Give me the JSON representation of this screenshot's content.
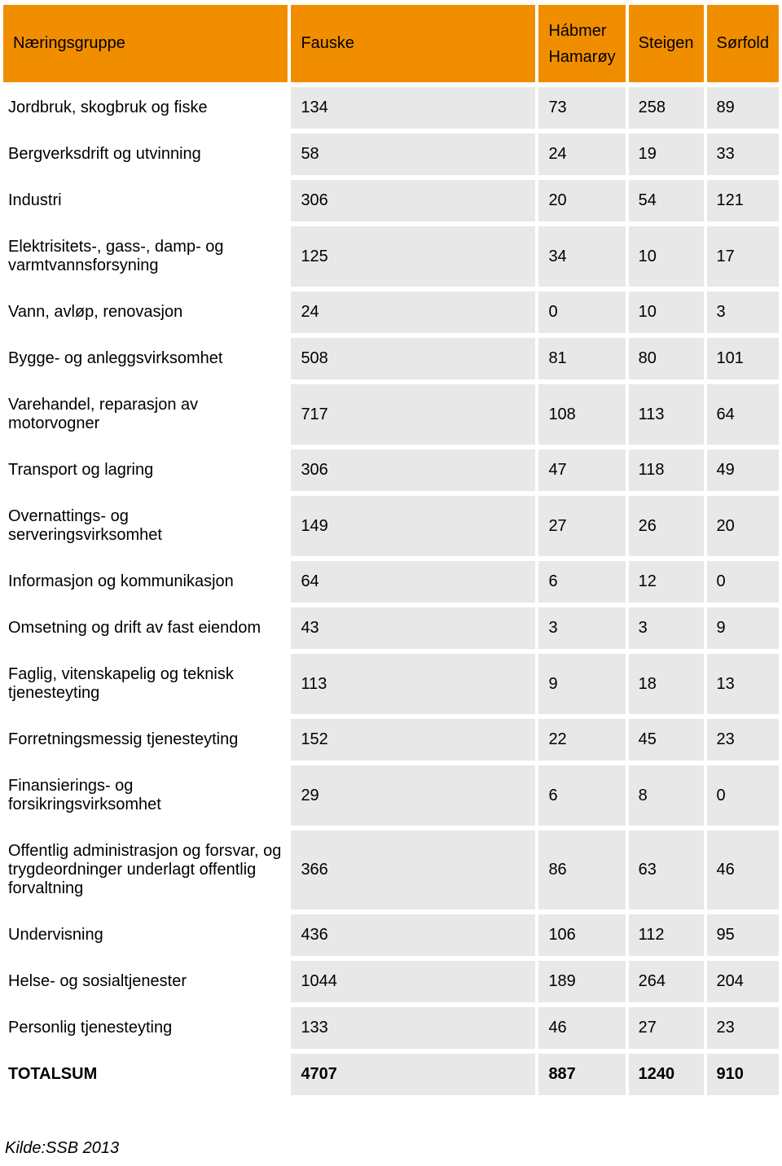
{
  "table": {
    "header_bg": "#f18e00",
    "cell_bg": "#e8e8e8",
    "background": "#ffffff",
    "text_color": "#000000",
    "columns": [
      {
        "label": "Næringsgruppe"
      },
      {
        "label": "Fauske"
      },
      {
        "label_line1": "Hábmer",
        "label_line2": "Hamarøy"
      },
      {
        "label": "Steigen"
      },
      {
        "label": "Sørfold"
      }
    ],
    "rows": [
      {
        "label": "Jordbruk, skogbruk og fiske",
        "values": [
          "134",
          "73",
          "258",
          "89"
        ]
      },
      {
        "label": "Bergverksdrift og utvinning",
        "values": [
          "58",
          "24",
          "19",
          "33"
        ]
      },
      {
        "label": "Industri",
        "values": [
          "306",
          "20",
          "54",
          "121"
        ]
      },
      {
        "label": "Elektrisitets-, gass-, damp- og varmtvannsforsyning",
        "values": [
          "125",
          "34",
          "10",
          "17"
        ]
      },
      {
        "label": "Vann, avløp, renovasjon",
        "values": [
          "24",
          "0",
          "10",
          "3"
        ]
      },
      {
        "label": "Bygge- og anleggsvirksomhet",
        "values": [
          "508",
          "81",
          "80",
          "101"
        ]
      },
      {
        "label": "Varehandel, reparasjon av motorvogner",
        "values": [
          "717",
          "108",
          "113",
          "64"
        ]
      },
      {
        "label": "Transport og lagring",
        "values": [
          "306",
          "47",
          "118",
          "49"
        ]
      },
      {
        "label": "Overnattings- og serveringsvirksomhet",
        "values": [
          "149",
          "27",
          "26",
          "20"
        ]
      },
      {
        "label": "Informasjon og kommunikasjon",
        "values": [
          "64",
          "6",
          "12",
          "0"
        ]
      },
      {
        "label": "Omsetning og drift av fast eiendom",
        "values": [
          "43",
          "3",
          "3",
          "9"
        ]
      },
      {
        "label": "Faglig, vitenskapelig og teknisk tjenesteyting",
        "values": [
          "113",
          "9",
          "18",
          "13"
        ]
      },
      {
        "label": "Forretningsmessig tjenesteyting",
        "values": [
          "152",
          "22",
          "45",
          "23"
        ]
      },
      {
        "label": "Finansierings- og forsikringsvirksomhet",
        "values": [
          "29",
          "6",
          "8",
          "0"
        ]
      },
      {
        "label": "Offentlig administrasjon og forsvar, og trygdeordninger underlagt offentlig forvaltning",
        "values": [
          "366",
          "86",
          "63",
          "46"
        ]
      },
      {
        "label": "Undervisning",
        "values": [
          "436",
          "106",
          "112",
          "95"
        ]
      },
      {
        "label": "Helse- og sosialtjenester",
        "values": [
          "1044",
          "189",
          "264",
          "204"
        ]
      },
      {
        "label": "Personlig tjenesteyting",
        "values": [
          "133",
          "46",
          "27",
          "23"
        ]
      }
    ],
    "total": {
      "label": "TOTALSUM",
      "values": [
        "4707",
        "887",
        "1240",
        "910"
      ]
    }
  },
  "source": "Kilde:SSB 2013"
}
